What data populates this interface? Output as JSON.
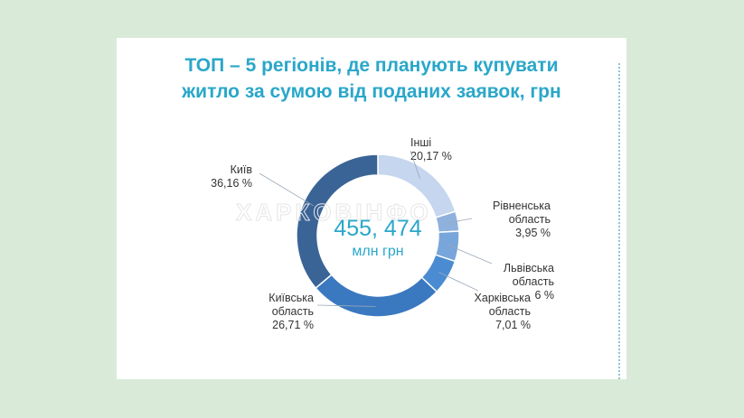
{
  "title_line1": "ТОП – 5 регіонів, де планують купувати",
  "title_line2": "житло за сумою від поданих заявок, грн",
  "watermark": "ХАРКОВІНФО",
  "center": {
    "value": "455, 474",
    "unit": "млн грн"
  },
  "chart_data": {
    "type": "pie",
    "title": "ТОП – 5 регіонів, де планують купувати житло за сумою від поданих заявок, грн",
    "total_label": "455, 474 млн грн",
    "slices": [
      {
        "name": "Інші",
        "value": 20.17,
        "label": "20,17 %",
        "color": "#c5d6ee"
      },
      {
        "name": "Рівненська область",
        "value": 3.95,
        "label": "3,95 %",
        "color": "#8eb1de"
      },
      {
        "name": "Львівська область",
        "value": 6,
        "label": "6 %",
        "color": "#79a6da"
      },
      {
        "name": "Харківська область",
        "value": 7.01,
        "label": "7,01 %",
        "color": "#4a8bd1"
      },
      {
        "name": "Київська область",
        "value": 26.71,
        "label": "26,71 %",
        "color": "#3a78c0"
      },
      {
        "name": "Київ",
        "value": 36.16,
        "label": "36,16 %",
        "color": "#3a6496"
      }
    ]
  }
}
